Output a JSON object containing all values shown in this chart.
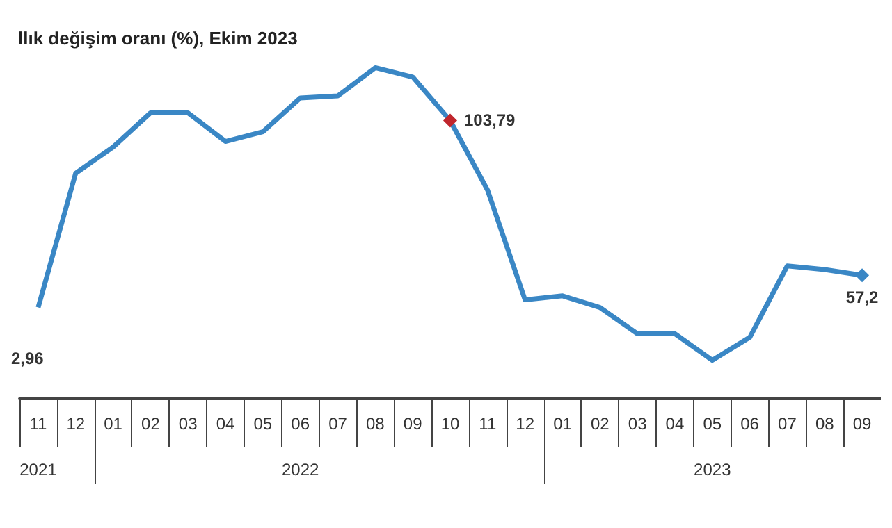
{
  "chart_data": {
    "type": "line",
    "title": "llık değişim oranı (%), Ekim 2023",
    "categories": [
      "11",
      "12",
      "01",
      "02",
      "03",
      "04",
      "05",
      "06",
      "07",
      "08",
      "09",
      "10",
      "11",
      "12",
      "01",
      "02",
      "03",
      "04",
      "05",
      "06",
      "07",
      "08",
      "09"
    ],
    "series": [
      {
        "color": "#3a87c5",
        "values": [
          47.5,
          87.9,
          95.8,
          106.1,
          106.1,
          97.5,
          100.4,
          110.6,
          111.2,
          119.7,
          116.9,
          103.79,
          82.8,
          49.8,
          51.0,
          47.5,
          39.6,
          39.6,
          31.6,
          38.5,
          60.0,
          58.9,
          57.2
        ],
        "colors": [
          "#3a87c5",
          "#3a87c5",
          "#3a87c5",
          "#3a87c5",
          "#3a87c5",
          "#3a87c5",
          "#3a87c5",
          "#3a87c5",
          "#3a87c5",
          "#3a87c5",
          "#3a87c5",
          "#c0262d",
          "#3a87c5",
          "#3a87c5",
          "#3a87c5",
          "#3a87c5",
          "#3a87c5",
          "#3a87c5",
          "#3a87c5",
          "#3a87c5",
          "#3a87c5",
          "#3a87c5",
          "#3a87c5"
        ],
        "value_labels": [
          null,
          null,
          null,
          null,
          null,
          null,
          null,
          null,
          null,
          null,
          null,
          "103,79",
          null,
          null,
          null,
          null,
          null,
          null,
          null,
          null,
          null,
          null,
          "57,2"
        ]
      }
    ],
    "annotations": [
      "2,96",
      "2021",
      "2022",
      "2023"
    ],
    "grid": false
  }
}
